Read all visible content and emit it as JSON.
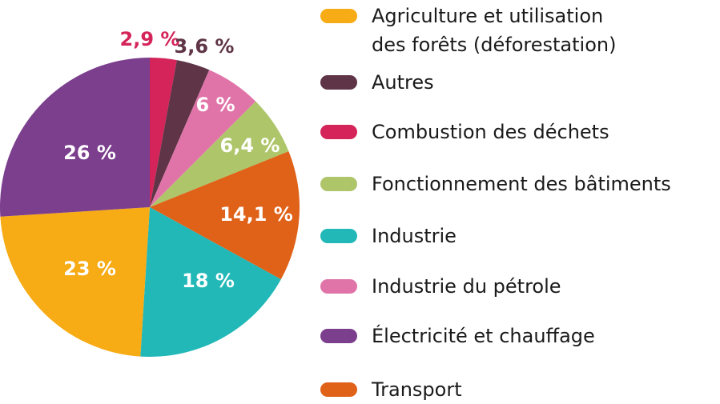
{
  "chart_data": {
    "type": "pie",
    "slices": [
      {
        "label": "Combustion des déchets",
        "value": 2.9,
        "display": "2,9 %",
        "color": "#d4245a",
        "label_color": "#d4245a"
      },
      {
        "label": "Autres",
        "value": 3.6,
        "display": "3,6 %",
        "color": "#5e3446",
        "label_color": "#5e3446"
      },
      {
        "label": "Industrie du pétrole",
        "value": 6,
        "display": "6 %",
        "color": "#e074a9",
        "label_color": "#ffffff"
      },
      {
        "label": "Fonctionnement des bâtiments",
        "value": 6.4,
        "display": "6,4 %",
        "color": "#aec56a",
        "label_color": "#ffffff"
      },
      {
        "label": "Transport",
        "value": 14.1,
        "display": "14,1 %",
        "color": "#e06118",
        "label_color": "#ffffff"
      },
      {
        "label": "Industrie",
        "value": 18,
        "display": "18 %",
        "color": "#22b8b8",
        "label_color": "#ffffff"
      },
      {
        "label": "Agriculture et utilisation des forêts (déforestation)",
        "value": 23,
        "display": "23 %",
        "color": "#f7ab14",
        "label_color": "#ffffff"
      },
      {
        "label": "Électricité et chauffage",
        "value": 26,
        "display": "26 %",
        "color": "#7c3f8e",
        "label_color": "#ffffff"
      }
    ]
  },
  "legend": {
    "items": [
      {
        "label": "Agriculture et utilisation\ndes forêts (déforestation)",
        "color": "#f7ab14"
      },
      {
        "label": "Autres",
        "color": "#5e3446"
      },
      {
        "label": "Combustion des déchets",
        "color": "#d4245a"
      },
      {
        "label": "Fonctionnement des bâtiments",
        "color": "#aec56a"
      },
      {
        "label": "Industrie",
        "color": "#22b8b8"
      },
      {
        "label": "Industrie du pétrole",
        "color": "#e074a9"
      },
      {
        "label": "Électricité et chauffage",
        "color": "#7c3f8e"
      },
      {
        "label": "Transport",
        "color": "#e06118"
      }
    ]
  }
}
